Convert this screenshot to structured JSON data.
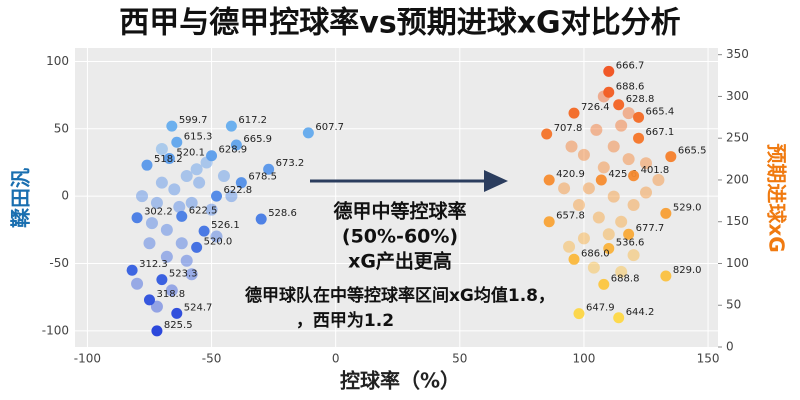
{
  "chart_data": {
    "type": "scatter",
    "title": "西甲与德甲控球率vs预期进球xG对比分析",
    "x_label": "控球率（%）",
    "y_label": "鞣田汎",
    "y2_label": "预期进球xG",
    "xlim": [
      -105,
      154
    ],
    "ylim": [
      -112,
      110
    ],
    "y2lim": [
      0,
      358
    ],
    "xticks": [
      -100,
      -50,
      0,
      50,
      100,
      150
    ],
    "yticks": [
      -100,
      -50,
      0,
      50,
      100
    ],
    "y2ticks": [
      0,
      50,
      100,
      150,
      200,
      250,
      300,
      350
    ],
    "grid": true,
    "annotations": [
      "德甲中等控球率",
      "(50%-60%)",
      "xG产出更高",
      "德甲球队在中等控球率区间xG均值1.8，",
      "，西甲为1.2"
    ],
    "series": [
      {
        "axis": "y",
        "colors": [
          "#1c35d8",
          "#7fd8f6"
        ],
        "x": [
          -66,
          -42,
          -64,
          -40,
          -11,
          -50,
          -67,
          -76,
          -27,
          -38,
          -48,
          -62,
          -30,
          -80,
          -53,
          -56,
          -82,
          -70,
          -75,
          -64,
          -72,
          -70,
          -65,
          -60,
          -72,
          -58,
          -55,
          -68,
          -62,
          -75,
          -50,
          -45,
          -52,
          -78,
          -60,
          -66,
          -72,
          -80,
          -48,
          -56,
          -63,
          -70,
          -42,
          -74,
          -58,
          -68
        ],
        "values": [
          52,
          52,
          40,
          38,
          47,
          30,
          28,
          23,
          20,
          10,
          0,
          -15,
          -17,
          -16,
          -26,
          -38,
          -55,
          -62,
          -77,
          -87,
          -100,
          10,
          5,
          15,
          -5,
          -5,
          10,
          -25,
          -35,
          -35,
          -10,
          15,
          25,
          0,
          -48,
          -70,
          -82,
          -65,
          -30,
          20,
          -8,
          35,
          0,
          -20,
          -58,
          -45
        ],
        "labels": [
          "599.7",
          "617.2",
          "615.3",
          "665.9",
          "607.7",
          "628.9",
          "520.1",
          "518.2",
          "673.2",
          "678.5",
          "622.8",
          "622.5",
          "528.6",
          "302.2",
          "526.1",
          "520.0",
          "312.3",
          "523.3",
          "318.8",
          "524.7",
          "825.5",
          null,
          null,
          null,
          null,
          null,
          null,
          null,
          null,
          null,
          null,
          null,
          null,
          null,
          null,
          null,
          null,
          null,
          null,
          null,
          null,
          null,
          null,
          null,
          null,
          null
        ]
      },
      {
        "axis": "y2",
        "colors": [
          "#ffe84a",
          "#f0441a"
        ],
        "x": [
          110,
          110,
          114,
          96,
          122,
          85,
          122,
          135,
          86,
          107,
          120,
          133,
          86,
          118,
          110,
          96,
          133,
          108,
          98,
          114,
          105,
          112,
          118,
          100,
          108,
          125,
          95,
          115,
          102,
          112,
          120,
          98,
          106,
          115,
          125,
          92,
          110,
          100,
          120,
          104,
          115,
          94,
          130,
          108,
          118
        ],
        "values": [
          330,
          305,
          290,
          280,
          275,
          255,
          250,
          228,
          200,
          200,
          205,
          160,
          150,
          135,
          118,
          105,
          85,
          75,
          40,
          35,
          260,
          240,
          225,
          230,
          215,
          220,
          240,
          265,
          190,
          180,
          170,
          170,
          155,
          150,
          185,
          190,
          135,
          130,
          110,
          95,
          90,
          120,
          200,
          300,
          280
        ],
        "labels": [
          "666.7",
          "688.6",
          "628.8",
          "726.4",
          "665.4",
          "707.8",
          "667.1",
          "665.5",
          "420.9",
          "425.6",
          "401.8",
          "529.0",
          "657.8",
          "677.7",
          "536.6",
          "686.0",
          "829.0",
          "688.8",
          "647.9",
          "644.2",
          null,
          null,
          null,
          null,
          null,
          null,
          null,
          null,
          null,
          null,
          null,
          null,
          null,
          null,
          null,
          null,
          null,
          null,
          null,
          null,
          null,
          null,
          null,
          null,
          null
        ]
      }
    ]
  }
}
